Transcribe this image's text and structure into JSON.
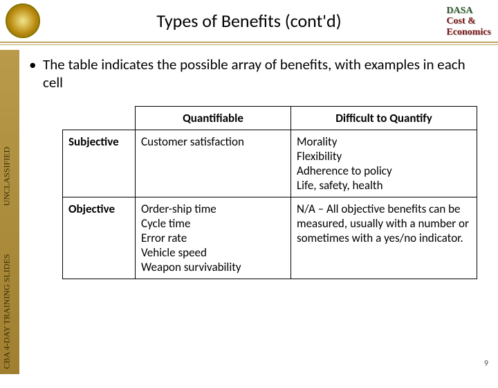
{
  "header": {
    "title": "Types of Benefits (cont'd)",
    "org_line1": "DASA",
    "org_line2": "Cost &",
    "org_line3": "Economics"
  },
  "sidebar": {
    "label_top": "UNCLASSIFIED",
    "label_bottom": "CBA  4-DAY TRAINING SLIDES"
  },
  "body": {
    "bullet": "The table indicates the possible array of benefits, with examples in each cell"
  },
  "table": {
    "col_headers": [
      "Quantifiable",
      "Difficult to Quantify"
    ],
    "row_headers": [
      "Subjective",
      "Objective"
    ],
    "cells": [
      [
        "Customer satisfaction",
        "Morality\nFlexibility\nAdherence to policy\nLife, safety, health"
      ],
      [
        "Order-ship time\nCycle time\nError rate\nVehicle speed\nWeapon survivability",
        "N/A – All objective benefits can be measured, usually with a number or sometimes with a yes/no indicator."
      ]
    ]
  },
  "page_number": "9"
}
